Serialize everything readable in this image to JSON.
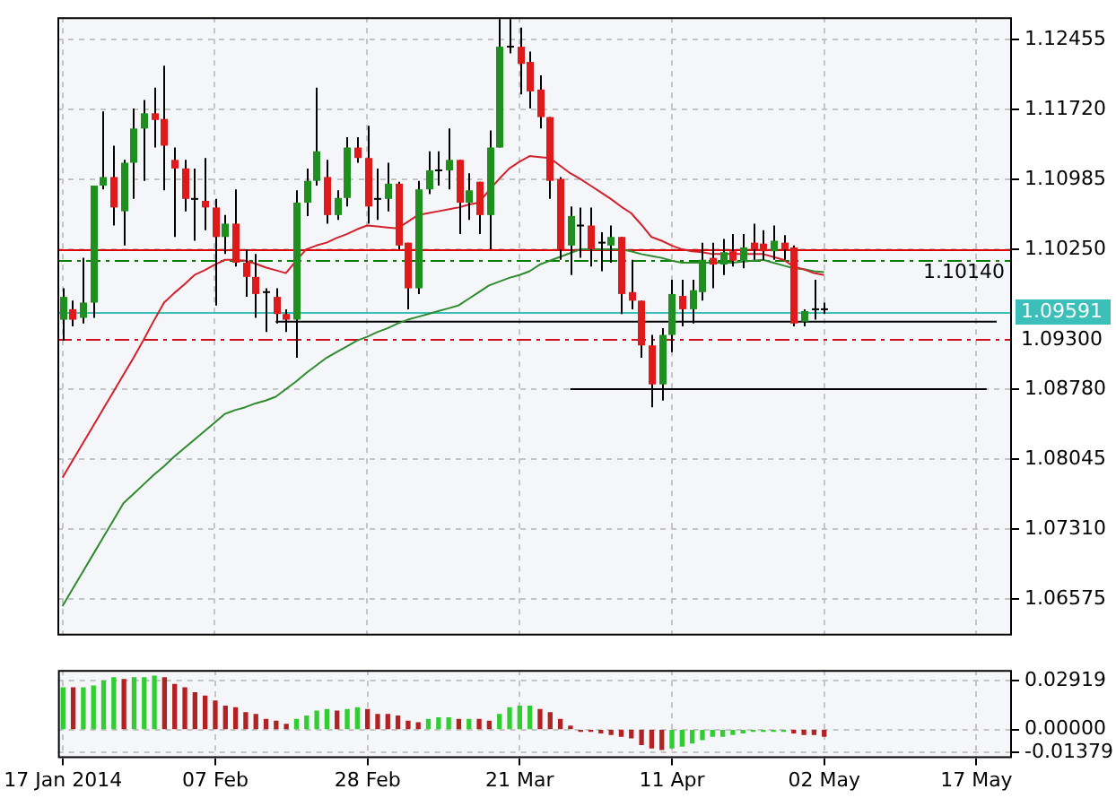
{
  "chart_data": [
    {
      "type": "candlestick",
      "ohlc": [
        [
          1.0951,
          1.0984,
          1.0929,
          1.0975
        ],
        [
          1.0962,
          1.0971,
          1.0944,
          1.0951
        ],
        [
          1.0953,
          1.1016,
          1.0947,
          1.0969
        ],
        [
          1.0969,
          1.1092,
          1.0953,
          1.1092
        ],
        [
          1.1092,
          1.117,
          1.1088,
          1.1101
        ],
        [
          1.1101,
          1.1134,
          1.105,
          1.1069
        ],
        [
          1.1065,
          1.1119,
          1.1029,
          1.1116
        ],
        [
          1.1116,
          1.1173,
          1.1078,
          1.1152
        ],
        [
          1.1152,
          1.1182,
          1.1097,
          1.1168
        ],
        [
          1.1168,
          1.1195,
          1.1132,
          1.1161
        ],
        [
          1.1162,
          1.1218,
          1.1087,
          1.1134
        ],
        [
          1.1119,
          1.1132,
          1.1038,
          1.111
        ],
        [
          1.111,
          1.1119,
          1.1065,
          1.1078
        ],
        [
          1.1078,
          1.111,
          1.1034,
          1.1078
        ],
        [
          1.1076,
          1.1121,
          1.1045,
          1.1069
        ],
        [
          1.1069,
          1.1078,
          1.0966,
          1.1038
        ],
        [
          1.1038,
          1.1061,
          1.102,
          1.1052
        ],
        [
          1.1052,
          1.1088,
          1.1007,
          1.1011
        ],
        [
          1.1011,
          1.1025,
          1.0975,
          1.0996
        ],
        [
          1.0996,
          1.102,
          1.0953,
          1.0978
        ],
        [
          1.098,
          1.0984,
          1.0938,
          1.098
        ],
        [
          1.0975,
          1.0984,
          1.0947,
          1.0957
        ],
        [
          1.0957,
          1.0962,
          1.0938,
          1.0951
        ],
        [
          1.0951,
          1.1087,
          1.0911,
          1.1074
        ],
        [
          1.1074,
          1.111,
          1.106,
          1.1097
        ],
        [
          1.1097,
          1.1195,
          1.1092,
          1.1128
        ],
        [
          1.1101,
          1.1119,
          1.1052,
          1.1061
        ],
        [
          1.1061,
          1.1087,
          1.1056,
          1.1079
        ],
        [
          1.1079,
          1.1143,
          1.107,
          1.1132
        ],
        [
          1.1132,
          1.1143,
          1.1116,
          1.1121
        ],
        [
          1.1121,
          1.1155,
          1.1052,
          1.107
        ],
        [
          1.1078,
          1.111,
          1.1056,
          1.1078
        ],
        [
          1.1078,
          1.1116,
          1.1065,
          1.1094
        ],
        [
          1.1094,
          1.1096,
          1.1025,
          1.1029
        ],
        [
          1.1032,
          1.1032,
          1.0962,
          1.0984
        ],
        [
          1.0984,
          1.1097,
          1.0978,
          1.1088
        ],
        [
          1.1088,
          1.1128,
          1.1083,
          1.1108
        ],
        [
          1.1108,
          1.1128,
          1.1092,
          1.1108
        ],
        [
          1.1108,
          1.1152,
          1.1088,
          1.1119
        ],
        [
          1.1119,
          1.1119,
          1.1041,
          1.1074
        ],
        [
          1.1074,
          1.1105,
          1.1056,
          1.1087
        ],
        [
          1.1096,
          1.1096,
          1.1041,
          1.1061
        ],
        [
          1.1061,
          1.115,
          1.1025,
          1.1132
        ],
        [
          1.1132,
          1.1267,
          1.1132,
          1.1238
        ],
        [
          1.1238,
          1.1267,
          1.1231,
          1.1238
        ],
        [
          1.1238,
          1.1258,
          1.1188,
          1.122
        ],
        [
          1.1222,
          1.1233,
          1.1173,
          1.1191
        ],
        [
          1.1193,
          1.1208,
          1.1152,
          1.1164
        ],
        [
          1.1164,
          1.1164,
          1.1078,
          1.1097
        ],
        [
          1.1099,
          1.1101,
          1.1014,
          1.1025
        ],
        [
          1.1029,
          1.107,
          1.0998,
          1.106
        ],
        [
          1.105,
          1.1069,
          1.1016,
          1.105
        ],
        [
          1.105,
          1.1069,
          1.1007,
          1.1025
        ],
        [
          1.1032,
          1.1043,
          1.1002,
          1.1032
        ],
        [
          1.1029,
          1.105,
          1.1011,
          1.1038
        ],
        [
          1.1038,
          1.1038,
          1.0957,
          1.0978
        ],
        [
          1.098,
          1.1014,
          1.0962,
          1.0971
        ],
        [
          1.0971,
          1.0971,
          1.0911,
          1.0924
        ],
        [
          1.0924,
          1.0935,
          1.0859,
          1.0883
        ],
        [
          1.0883,
          1.0942,
          1.0866,
          1.0935
        ],
        [
          1.0935,
          1.0993,
          1.0917,
          1.0978
        ],
        [
          1.0976,
          1.0993,
          1.0944,
          1.0962
        ],
        [
          1.0962,
          1.0993,
          1.0947,
          1.0982
        ],
        [
          1.098,
          1.1032,
          1.0971,
          1.1014
        ],
        [
          1.1016,
          1.1032,
          1.0984,
          1.1009
        ],
        [
          1.1009,
          1.1036,
          1.0998,
          1.1022
        ],
        [
          1.1023,
          1.1041,
          1.1007,
          1.1013
        ],
        [
          1.1013,
          1.1041,
          1.1005,
          1.1027
        ],
        [
          1.1032,
          1.1052,
          1.1014,
          1.1025
        ],
        [
          1.1031,
          1.1045,
          1.1014,
          1.1023
        ],
        [
          1.1023,
          1.105,
          1.1014,
          1.1034
        ],
        [
          1.1032,
          1.104,
          1.1014,
          1.1025
        ],
        [
          1.1027,
          1.1029,
          1.0944,
          1.0947
        ],
        [
          1.0949,
          1.0962,
          1.0944,
          1.096
        ],
        [
          1.0962,
          1.0993,
          1.0951,
          1.0962
        ],
        [
          1.0962,
          1.0969,
          1.0957,
          1.0962
        ],
        null,
        null,
        null,
        null,
        null,
        null,
        null,
        null,
        null,
        null,
        null,
        null,
        null,
        null,
        null,
        null,
        null,
        null
      ],
      "colors": [
        "#1f8f1f",
        "#e0191b",
        "#1f8f1f",
        "#1f8f1f",
        "#1f8f1f",
        "#e0191b",
        "#1f8f1f",
        "#1f8f1f",
        "#1f8f1f",
        "#e0191b",
        "#e0191b",
        "#e0191b",
        "#e0191b",
        "#000000",
        "#e0191b",
        "#e0191b",
        "#1f8f1f",
        "#e0191b",
        "#e0191b",
        "#e0191b",
        "#000000",
        "#e0191b",
        "#e0191b",
        "#1f8f1f",
        "#1f8f1f",
        "#1f8f1f",
        "#e0191b",
        "#1f8f1f",
        "#1f8f1f",
        "#e0191b",
        "#e0191b",
        "#000000",
        "#1f8f1f",
        "#e0191b",
        "#e0191b",
        "#1f8f1f",
        "#1f8f1f",
        "#000000",
        "#1f8f1f",
        "#e0191b",
        "#1f8f1f",
        "#e0191b",
        "#1f8f1f",
        "#1f8f1f",
        "#000000",
        "#e0191b",
        "#e0191b",
        "#e0191b",
        "#e0191b",
        "#e0191b",
        "#1f8f1f",
        "#000000",
        "#e0191b",
        "#000000",
        "#1f8f1f",
        "#e0191b",
        "#e0191b",
        "#e0191b",
        "#e0191b",
        "#1f8f1f",
        "#1f8f1f",
        "#e0191b",
        "#1f8f1f",
        "#1f8f1f",
        "#e0191b",
        "#1f8f1f",
        "#e0191b",
        "#1f8f1f",
        "#e0191b",
        "#e0191b",
        "#1f8f1f",
        "#e0191b",
        "#e0191b",
        "#1f8f1f",
        "#000000",
        "#000000",
        null,
        null,
        null,
        null,
        null,
        null,
        null,
        null,
        null,
        null,
        null,
        null,
        null,
        null,
        null,
        null,
        null,
        null
      ],
      "series": [
        {
          "type": "line",
          "color": "#d4202a",
          "values": [
            1.0785,
            1.0803,
            1.0821,
            1.0839,
            1.0857,
            1.0875,
            1.0893,
            1.0911,
            1.093,
            1.095,
            1.0969,
            1.0979,
            1.0988,
            1.0998,
            1.1003,
            1.1009,
            1.1014,
            1.1014,
            1.1013,
            1.101,
            1.1006,
            1.1003,
            1.1,
            1.1013,
            1.1025,
            1.1029,
            1.1032,
            1.1037,
            1.1041,
            1.1046,
            1.105,
            1.1049,
            1.1048,
            1.1047,
            1.1054,
            1.1061,
            1.1063,
            1.1065,
            1.1067,
            1.1069,
            1.1072,
            1.1074,
            1.1087,
            1.1099,
            1.111,
            1.1117,
            1.1123,
            1.1122,
            1.1121,
            1.1113,
            1.1105,
            1.1099,
            1.1092,
            1.1085,
            1.1078,
            1.107,
            1.1063,
            1.1051,
            1.1038,
            1.1034,
            1.1029,
            1.1025,
            1.1023,
            1.1022,
            1.102,
            1.102,
            1.102,
            1.102,
            1.102,
            1.102,
            1.1017,
            1.1014,
            1.1007,
            1.1004,
            1.1,
            1.0998,
            null,
            null,
            null,
            null,
            null,
            null,
            null,
            null,
            null,
            null,
            null,
            null,
            null,
            null,
            null,
            null,
            null,
            null
          ]
        },
        {
          "type": "line",
          "color": "#2e8b2e",
          "values": [
            1.065,
            1.0668,
            1.0686,
            1.0704,
            1.0722,
            1.074,
            1.0758,
            1.0768,
            1.0778,
            1.0788,
            1.0797,
            1.0807,
            1.0816,
            1.0825,
            1.0834,
            1.0843,
            1.0852,
            1.0856,
            1.0859,
            1.0863,
            1.0866,
            1.087,
            1.0878,
            1.0886,
            1.0895,
            1.0903,
            1.0911,
            1.0917,
            1.0923,
            1.0929,
            1.0933,
            1.0938,
            1.0942,
            1.0947,
            1.0951,
            1.0954,
            1.0957,
            1.096,
            1.0963,
            1.0966,
            1.0973,
            1.098,
            1.0987,
            1.0991,
            1.0995,
            1.0998,
            1.1002,
            1.1009,
            1.1013,
            1.1017,
            1.1021,
            1.1025,
            1.1025,
            1.1025,
            1.1025,
            1.1025,
            1.1023,
            1.102,
            1.1018,
            1.1016,
            1.1013,
            1.1011,
            1.1011,
            1.1011,
            1.1011,
            1.1011,
            1.1011,
            1.1012,
            1.1013,
            1.1014,
            1.1011,
            1.1008,
            1.1005,
            1.1004,
            1.1002,
            1.1001,
            null,
            null,
            null,
            null,
            null,
            null,
            null,
            null,
            null,
            null,
            null,
            null,
            null,
            null,
            null,
            null,
            null,
            null
          ]
        },
        {
          "type": "line",
          "color": "#000000",
          "values": [
            null,
            null,
            null,
            null,
            null,
            null,
            null,
            null,
            null,
            null,
            null,
            null,
            null,
            null,
            null,
            null,
            null,
            null,
            null,
            null,
            null,
            1.0949,
            1.0949,
            1.0949,
            1.0949,
            1.0949,
            1.0949,
            1.0949,
            1.0949,
            1.0949,
            1.0949,
            1.0949,
            1.0949,
            1.0949,
            1.0949,
            1.0949,
            1.0949,
            1.0949,
            1.0949,
            1.0949,
            1.0949,
            1.0949,
            1.0949,
            1.0949,
            1.0949,
            1.0949,
            1.0949,
            1.0949,
            1.0949,
            1.0949,
            1.0949,
            1.0949,
            1.0949,
            1.0949,
            1.0949,
            1.0949,
            1.0949,
            1.0949,
            1.0949,
            1.0949,
            1.0949,
            1.0949,
            1.0949,
            1.0949,
            1.0949,
            1.0949,
            1.0949,
            1.0949,
            1.0949,
            1.0949,
            1.0949,
            1.0949,
            1.0949,
            1.0949,
            1.0949,
            1.0949,
            1.0949,
            1.0949,
            1.0949,
            1.0949,
            1.0949,
            1.0949,
            1.0949,
            1.0949,
            1.0949,
            1.0949,
            1.0949,
            1.0949,
            1.0949,
            1.0949,
            1.0949,
            1.0949,
            1.0949,
            null
          ]
        },
        {
          "type": "line",
          "color": "#000000",
          "values": [
            null,
            null,
            null,
            null,
            null,
            null,
            null,
            null,
            null,
            null,
            null,
            null,
            null,
            null,
            null,
            null,
            null,
            null,
            null,
            null,
            null,
            null,
            null,
            null,
            null,
            null,
            null,
            null,
            null,
            null,
            null,
            null,
            null,
            null,
            null,
            null,
            null,
            null,
            null,
            null,
            null,
            null,
            null,
            null,
            null,
            null,
            null,
            null,
            null,
            null,
            1.0878,
            1.0878,
            1.0878,
            1.0878,
            1.0878,
            1.0878,
            1.0878,
            1.0878,
            1.0878,
            1.0878,
            1.0878,
            1.0878,
            1.0878,
            1.0878,
            1.0878,
            1.0878,
            1.0878,
            1.0878,
            1.0878,
            1.0878,
            1.0878,
            1.0878,
            1.0878,
            1.0878,
            1.0878,
            1.0878,
            1.0878,
            1.0878,
            1.0878,
            1.0878,
            1.0878,
            1.0878,
            1.0878,
            1.0878,
            1.0878,
            1.0878,
            1.0878,
            1.0878,
            1.0878,
            1.0878,
            1.0878,
            1.0878,
            null,
            null
          ]
        }
      ],
      "ref_lines": [
        {
          "axis": "y",
          "value": 1.1025,
          "color": "#e00000",
          "line_style": "solid"
        },
        {
          "axis": "y",
          "value": 1.1014,
          "label": "1.10140",
          "color": "#008000",
          "line_style": "dashed"
        },
        {
          "axis": "y",
          "value": 1.09591,
          "label": "1.09591",
          "color": "#3cbfb8",
          "line_style": "solid"
        },
        {
          "axis": "y",
          "value": 1.093,
          "label": "1.09300",
          "color": "#d01020",
          "line_style": "dashed"
        }
      ],
      "ylim": [
        1.0619,
        1.1269
      ],
      "yticks": [
        1.12455,
        {
          "value": 1.1172,
          "label": "1.11720"
        },
        1.10985,
        {
          "value": 1.1025,
          "label": "1.10250"
        },
        {
          "value": 1.0878,
          "label": "1.08780"
        },
        1.08045,
        {
          "value": 1.0731,
          "label": "1.07310"
        },
        1.06575
      ],
      "tick_labels": "y",
      "grid": true,
      "legend": false,
      "marker": "none"
    },
    {
      "type": "bar",
      "categories": [
        "17 Jan 2014",
        null,
        null,
        null,
        null,
        null,
        null,
        null,
        null,
        null,
        null,
        null,
        null,
        null,
        null,
        "07 Feb",
        null,
        null,
        null,
        null,
        null,
        null,
        null,
        null,
        null,
        null,
        null,
        null,
        null,
        null,
        "28 Feb",
        null,
        null,
        null,
        null,
        null,
        null,
        null,
        null,
        null,
        null,
        null,
        null,
        null,
        null,
        "21 Mar",
        null,
        null,
        null,
        null,
        null,
        null,
        null,
        null,
        null,
        null,
        null,
        null,
        null,
        null,
        "11 Apr",
        null,
        null,
        null,
        null,
        null,
        null,
        null,
        null,
        null,
        null,
        null,
        null,
        null,
        null,
        "02 May",
        null,
        null,
        null,
        null,
        null,
        null,
        null,
        null,
        null,
        null,
        null,
        null,
        null,
        null,
        "17 May",
        null,
        null,
        null
      ],
      "values": [
        0.025,
        0.025,
        0.025,
        0.026,
        0.029,
        0.031,
        0.03,
        0.031,
        0.031,
        0.032,
        0.031,
        0.027,
        0.025,
        0.022,
        0.02,
        0.017,
        0.014,
        0.013,
        0.01,
        0.009,
        0.006,
        0.005,
        0.003,
        0.006,
        0.008,
        0.011,
        0.012,
        0.011,
        0.012,
        0.013,
        0.012,
        0.009,
        0.009,
        0.008,
        0.005,
        0.004,
        0.006,
        0.007,
        0.007,
        0.006,
        0.006,
        0.006,
        0.005,
        0.009,
        0.013,
        0.014,
        0.014,
        0.012,
        0.01,
        0.006,
        0.002,
        -0.001,
        -0.001,
        -0.002,
        -0.003,
        -0.004,
        -0.005,
        -0.009,
        -0.011,
        -0.012,
        -0.011,
        -0.01,
        -0.008,
        -0.006,
        -0.004,
        -0.004,
        -0.003,
        -0.002,
        -0.001,
        -0.001,
        -0.001,
        -0.001,
        -0.002,
        -0.003,
        -0.003,
        -0.004,
        null,
        null,
        null,
        null,
        null,
        null,
        null,
        null,
        null,
        null,
        null,
        null,
        null,
        null,
        null,
        null,
        null,
        null
      ],
      "colors": [
        "#32cd32",
        "#b22222",
        "#32cd32",
        "#32cd32",
        "#32cd32",
        "#32cd32",
        "#b22222",
        "#32cd32",
        "#32cd32",
        "#32cd32",
        "#b22222",
        "#b22222",
        "#b22222",
        "#b22222",
        "#b22222",
        "#b22222",
        "#b22222",
        "#b22222",
        "#b22222",
        "#b22222",
        "#b22222",
        "#b22222",
        "#b22222",
        "#32cd32",
        "#32cd32",
        "#32cd32",
        "#32cd32",
        "#b22222",
        "#32cd32",
        "#32cd32",
        "#b22222",
        "#b22222",
        "#b22222",
        "#b22222",
        "#b22222",
        "#b22222",
        "#32cd32",
        "#32cd32",
        "#32cd32",
        "#b22222",
        "#32cd32",
        "#b22222",
        "#b22222",
        "#32cd32",
        "#32cd32",
        "#32cd32",
        "#32cd32",
        "#b22222",
        "#b22222",
        "#b22222",
        "#b22222",
        "#b22222",
        "#b22222",
        "#b22222",
        "#b22222",
        "#b22222",
        "#b22222",
        "#b22222",
        "#b22222",
        "#b22222",
        "#32cd32",
        "#32cd32",
        "#32cd32",
        "#32cd32",
        "#32cd32",
        "#32cd32",
        "#32cd32",
        "#32cd32",
        "#32cd32",
        "#32cd32",
        "#32cd32",
        "#32cd32",
        "#b22222",
        "#b22222",
        "#b22222",
        "#b22222",
        null,
        null,
        null,
        null,
        null,
        null,
        null,
        null,
        null,
        null,
        null,
        null,
        null,
        null,
        null,
        null,
        null,
        null
      ],
      "ylim": [
        -0.0172,
        0.0357
      ],
      "yticks": [
        0.02919,
        {
          "value": 0,
          "label": "0.00000"
        },
        -0.01379
      ],
      "grid": true,
      "legend": false
    }
  ]
}
